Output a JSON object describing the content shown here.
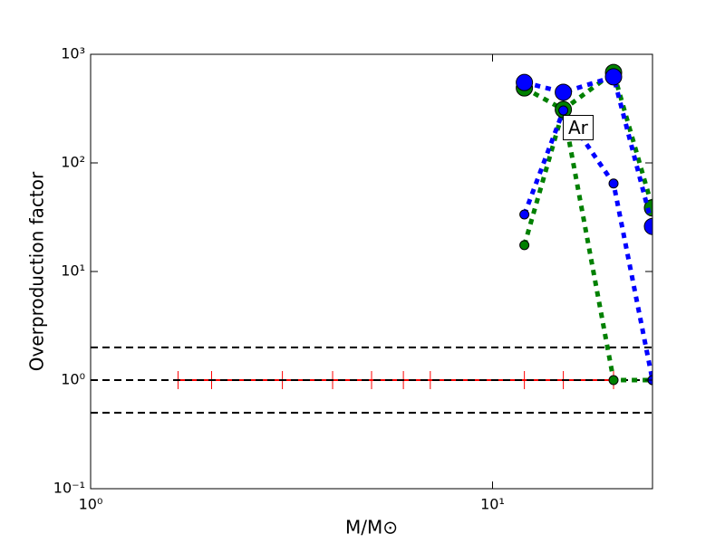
{
  "chart_data": {
    "type": "line",
    "xlabel": "M/M⊙",
    "ylabel": "Overproduction factor",
    "xscale": "log",
    "yscale": "log",
    "xlim": [
      1,
      25
    ],
    "ylim": [
      0.1,
      1000
    ],
    "xticks": [
      {
        "value": 1,
        "label": "10⁰"
      },
      {
        "value": 10,
        "label": "10¹"
      }
    ],
    "yticks": [
      {
        "value": 0.1,
        "label": "10⁻¹"
      },
      {
        "value": 1,
        "label": "10⁰"
      },
      {
        "value": 10,
        "label": "10¹"
      },
      {
        "value": 100,
        "label": "10²"
      },
      {
        "value": 1000,
        "label": "10³"
      }
    ],
    "reference_lines": {
      "color": "#000000",
      "linestyle": "dashed",
      "values": [
        2,
        1,
        0.5
      ]
    },
    "series": [
      {
        "color": "#ff0000",
        "linestyle": "solid",
        "marker": "|",
        "markersize": 20,
        "x": [
          1.65,
          2,
          3,
          4,
          5,
          6,
          7,
          12,
          15,
          20
        ],
        "values": [
          1,
          1,
          1,
          1,
          1,
          1,
          1,
          1,
          1,
          1
        ]
      },
      {
        "color": "#008000",
        "linestyle": "dotted",
        "marker": "o",
        "markersize": 10,
        "x": [
          12,
          15,
          20,
          25
        ],
        "values": [
          17.5,
          310,
          1,
          1
        ]
      },
      {
        "color": "#008000",
        "linestyle": "dotted",
        "marker": "o",
        "markersize": 18,
        "x": [
          12,
          15,
          20,
          25
        ],
        "values": [
          490,
          310,
          680,
          38.5
        ]
      },
      {
        "color": "#0000ff",
        "linestyle": "dotted",
        "marker": "o",
        "markersize": 10,
        "x": [
          12,
          15,
          20,
          25
        ],
        "values": [
          33.5,
          304,
          64.6,
          1
        ]
      },
      {
        "color": "#0000ff",
        "linestyle": "dotted",
        "marker": "o",
        "markersize": 18,
        "x": [
          12,
          15,
          20,
          25
        ],
        "values": [
          550,
          447,
          620,
          26
        ]
      }
    ],
    "annotation": "Ar"
  }
}
